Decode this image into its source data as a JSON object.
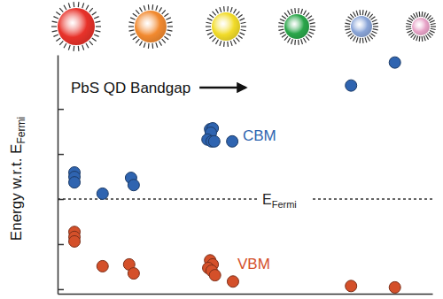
{
  "chart_data": {
    "type": "scatter",
    "y_label": "Energy w.r.t. E",
    "y_label_subscript": "Fermi",
    "xlim": [
      0,
      100
    ],
    "ylim": [
      -2.1,
      3.2
    ],
    "yticks": [
      -2,
      -1,
      0,
      1,
      2
    ],
    "tick_labels": false,
    "annotations": [
      {
        "text": "PbS QD Bandgap"
      }
    ],
    "reference_line": {
      "y": 0,
      "label": "E",
      "label_subscript": "Fermi",
      "line_style": "dotted"
    },
    "series": [
      {
        "name": "CBM",
        "color": "#2f64b0",
        "marker": "circle",
        "x": [
          4.5,
          4.5,
          4.5,
          12,
          19.6,
          20.3,
          40.7,
          41.4,
          40.9,
          40,
          41.1,
          41.8,
          46.6,
          78.3,
          90
        ],
        "values": [
          0.59,
          0.49,
          0.37,
          0.12,
          0.47,
          0.31,
          1.55,
          1.57,
          1.47,
          1.32,
          1.28,
          1.28,
          1.28,
          2.52,
          3.03
        ]
      },
      {
        "name": "VBM",
        "color": "#d4502a",
        "marker": "circle",
        "x": [
          4.5,
          4.5,
          4.5,
          12,
          19.1,
          20.3,
          40.7,
          41.4,
          40.2,
          41.1,
          42,
          46.8,
          78.3,
          90
        ],
        "values": [
          -0.73,
          -0.84,
          -0.94,
          -1.49,
          -1.45,
          -1.65,
          -1.36,
          -1.45,
          -1.53,
          -1.59,
          -1.69,
          -1.83,
          -1.93,
          -1.96
        ]
      }
    ]
  }
}
